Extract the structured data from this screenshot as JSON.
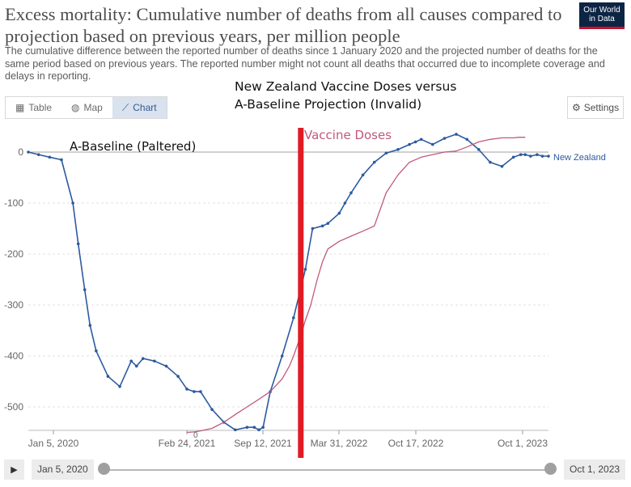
{
  "header": {
    "title": "Excess mortality: Cumulative number of deaths from all causes compared to projection based on previous years, per million people",
    "subtitle": "The cumulative difference between the reported number of deaths since 1 January 2020 and the projected number of deaths for the same period based on previous years. The reported number might not count all deaths that occurred due to incomplete coverage and delays in reporting.",
    "logo_line1": "Our World",
    "logo_line2": "in Data"
  },
  "tabs": [
    {
      "label": "Table",
      "icon": "table-icon"
    },
    {
      "label": "Map",
      "icon": "globe-icon"
    },
    {
      "label": "Chart",
      "icon": "chart-icon",
      "active": true
    }
  ],
  "settings_label": "Settings",
  "overlay": {
    "title_line1": "New Zealand Vaccine Doses versus",
    "title_line2": "A-Baseline Projection (Invalid)",
    "baseline_label": "A-Baseline (Paltered)",
    "vaccine_label": "Vaccine Doses",
    "vaccine_zero_label": "0"
  },
  "colors": {
    "excess_line": "#2c5aa0",
    "vaccine_line": "#c0587e",
    "red_bar": "#e01b24",
    "zero_line": "#b5b5b5"
  },
  "timeline": {
    "start": "Jan 5, 2020",
    "end": "Oct 1, 2023"
  },
  "chart_data": {
    "type": "line",
    "x_ticks": [
      "Jan 5, 2020",
      "Feb 24, 2021",
      "Sep 12, 2021",
      "Mar 31, 2022",
      "Oct 17, 2022",
      "Oct 1, 2023"
    ],
    "y_ticks": [
      0,
      -100,
      -200,
      -300,
      -400,
      -500
    ],
    "ylim": [
      -560,
      35
    ],
    "xlim": [
      "2020-01-05",
      "2023-10-01"
    ],
    "red_vertical_marker": "2021-12-20",
    "series": [
      {
        "name": "New Zealand",
        "x": [
          "2020-01-05",
          "2020-02-01",
          "2020-03-01",
          "2020-04-01",
          "2020-05-01",
          "2020-05-15",
          "2020-06-01",
          "2020-06-15",
          "2020-07-01",
          "2020-08-01",
          "2020-09-01",
          "2020-10-01",
          "2020-10-15",
          "2020-11-01",
          "2020-12-01",
          "2021-01-01",
          "2021-02-01",
          "2021-02-24",
          "2021-03-15",
          "2021-04-01",
          "2021-05-01",
          "2021-06-01",
          "2021-07-01",
          "2021-08-01",
          "2021-08-20",
          "2021-09-01",
          "2021-09-12",
          "2021-10-01",
          "2021-11-01",
          "2021-12-01",
          "2022-01-01",
          "2022-01-20",
          "2022-02-15",
          "2022-03-01",
          "2022-03-31",
          "2022-04-15",
          "2022-05-01",
          "2022-06-01",
          "2022-07-01",
          "2022-08-01",
          "2022-09-01",
          "2022-10-01",
          "2022-10-17",
          "2022-11-01",
          "2022-12-01",
          "2023-01-01",
          "2023-02-01",
          "2023-03-01",
          "2023-04-01",
          "2023-05-01",
          "2023-06-01",
          "2023-07-01",
          "2023-07-20",
          "2023-08-01",
          "2023-08-15",
          "2023-09-01",
          "2023-09-15",
          "2023-10-01"
        ],
        "y": [
          0,
          -5,
          -10,
          -15,
          -100,
          -180,
          -270,
          -340,
          -390,
          -440,
          -460,
          -410,
          -420,
          -405,
          -410,
          -420,
          -440,
          -465,
          -470,
          -470,
          -505,
          -530,
          -545,
          -540,
          -540,
          -545,
          -540,
          -470,
          -400,
          -325,
          -230,
          -150,
          -145,
          -140,
          -120,
          -100,
          -80,
          -45,
          -20,
          -2,
          5,
          15,
          20,
          25,
          15,
          27,
          35,
          25,
          5,
          -20,
          -28,
          -10,
          -5,
          -5,
          -8,
          -5,
          -8,
          -8
        ]
      },
      {
        "name": "Vaccine Doses",
        "x": [
          "2021-02-24",
          "2021-03-15",
          "2021-04-01",
          "2021-05-01",
          "2021-06-01",
          "2021-07-01",
          "2021-08-01",
          "2021-09-01",
          "2021-10-01",
          "2021-11-01",
          "2021-11-20",
          "2021-12-01",
          "2021-12-20",
          "2022-01-01",
          "2022-01-15",
          "2022-02-01",
          "2022-02-15",
          "2022-03-01",
          "2022-03-31",
          "2022-05-01",
          "2022-06-01",
          "2022-07-01",
          "2022-08-01",
          "2022-09-01",
          "2022-10-01",
          "2022-11-01",
          "2022-12-01",
          "2023-01-01",
          "2023-02-01",
          "2023-03-01",
          "2023-04-01",
          "2023-05-01",
          "2023-06-01",
          "2023-07-01",
          "2023-07-15",
          "2023-08-01"
        ],
        "y": [
          -550,
          -549,
          -547,
          -542,
          -530,
          -515,
          -500,
          -485,
          -470,
          -445,
          -420,
          -400,
          -360,
          -330,
          -300,
          -250,
          -215,
          -190,
          -175,
          -165,
          -155,
          -145,
          -80,
          -45,
          -20,
          -10,
          -5,
          0,
          2,
          10,
          20,
          25,
          28,
          28,
          29,
          29
        ]
      }
    ]
  }
}
